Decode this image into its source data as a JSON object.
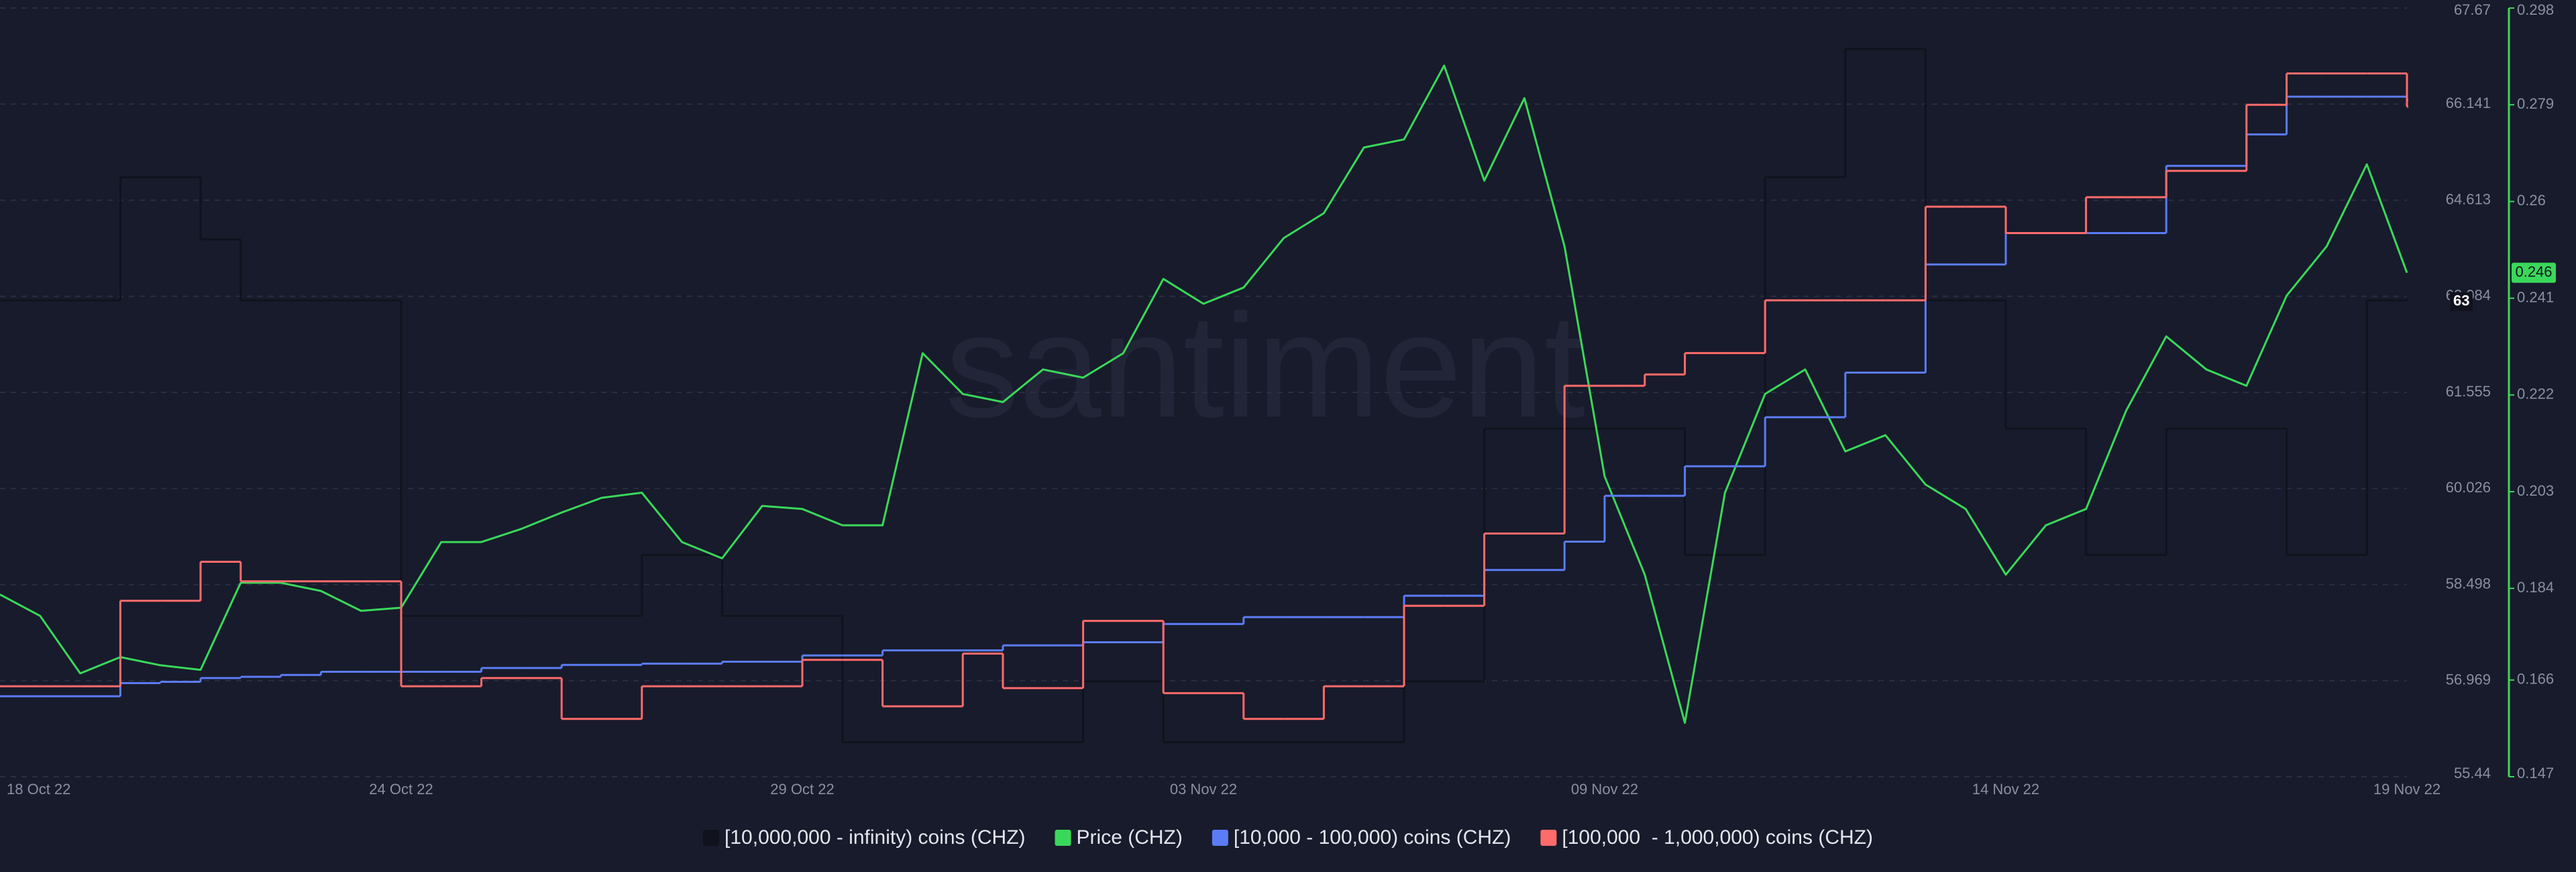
{
  "chart_data": {
    "type": "line",
    "watermark": "santiment",
    "categories": [
      "18 Oct 22",
      null,
      null,
      null,
      null,
      null,
      null,
      null,
      null,
      null,
      "24 Oct 22",
      null,
      null,
      null,
      null,
      null,
      null,
      null,
      null,
      null,
      "29 Oct 22",
      null,
      null,
      null,
      null,
      null,
      null,
      null,
      null,
      null,
      "03 Nov 22",
      null,
      null,
      null,
      null,
      null,
      null,
      null,
      null,
      null,
      "09 Nov 22",
      null,
      null,
      null,
      null,
      null,
      null,
      null,
      null,
      null,
      "14 Nov 22",
      null,
      null,
      null,
      null,
      null,
      null,
      null,
      null,
      null,
      "19 Nov 22"
    ],
    "ylim": [
      55.44,
      67.67
    ],
    "yticks": [
      55.44,
      56.969,
      58.498,
      60.026,
      61.555,
      63.084,
      64.613,
      66.141,
      67.67
    ],
    "y2lim": [
      0.147,
      0.298
    ],
    "y2ticks": [
      0.147,
      0.166,
      0.184,
      0.203,
      0.222,
      0.241,
      0.26,
      0.279,
      0.298
    ],
    "grid": true,
    "y_marker": 63,
    "y2_marker": 0.246,
    "series": [
      {
        "name": "[10,000,000 - infinity) coins (CHZ)",
        "color": "#10121d",
        "line_style": "step",
        "values": [
          63.02,
          63.02,
          63.02,
          64.98,
          64.98,
          63.99,
          63.02,
          63.02,
          63.02,
          63.02,
          58.0,
          58.0,
          58.0,
          58.0,
          58.0,
          58.0,
          58.97,
          58.97,
          58.0,
          58.0,
          58.0,
          55.99,
          55.99,
          55.99,
          55.99,
          55.99,
          55.99,
          56.96,
          56.96,
          55.99,
          55.99,
          55.99,
          55.99,
          55.99,
          55.99,
          56.96,
          56.96,
          60.98,
          60.98,
          60.98,
          60.98,
          60.98,
          58.97,
          58.97,
          64.98,
          64.98,
          67.02,
          67.02,
          63.02,
          63.02,
          60.98,
          60.98,
          58.97,
          58.97,
          60.98,
          60.98,
          60.98,
          58.97,
          58.97,
          63.02,
          63.02
        ]
      },
      {
        "name": "Price (CHZ)",
        "color": "#3ad85a",
        "axis": "y2",
        "line_style": "line",
        "values": [
          0.1828,
          0.1786,
          0.1673,
          0.1705,
          0.1689,
          0.168,
          0.1851,
          0.1851,
          0.1835,
          0.1796,
          0.1802,
          0.1931,
          0.1931,
          0.1957,
          0.1989,
          0.2018,
          0.2028,
          0.1931,
          0.1899,
          0.2002,
          0.1996,
          0.1964,
          0.1964,
          0.2302,
          0.2222,
          0.2206,
          0.227,
          0.2254,
          0.2302,
          0.2448,
          0.2399,
          0.2431,
          0.2528,
          0.2577,
          0.2706,
          0.2722,
          0.2867,
          0.2641,
          0.2803,
          0.2512,
          0.206,
          0.1867,
          0.1576,
          0.2028,
          0.2222,
          0.227,
          0.2109,
          0.2141,
          0.2044,
          0.1996,
          0.1867,
          0.1964,
          0.1996,
          0.2189,
          0.2335,
          0.227,
          0.2238,
          0.2415,
          0.2512,
          0.2673,
          0.246
        ]
      },
      {
        "name": "[10,000 - 100,000) coins (CHZ)",
        "color": "#5b7cf6",
        "line_style": "step",
        "values": [
          56.72,
          56.72,
          56.72,
          56.93,
          56.95,
          57.01,
          57.03,
          57.06,
          57.11,
          57.11,
          57.11,
          57.11,
          57.17,
          57.17,
          57.22,
          57.22,
          57.24,
          57.24,
          57.27,
          57.27,
          57.37,
          57.37,
          57.45,
          57.45,
          57.45,
          57.53,
          57.53,
          57.58,
          57.58,
          57.87,
          57.87,
          57.98,
          57.98,
          57.98,
          57.98,
          58.32,
          58.32,
          58.73,
          58.73,
          59.18,
          59.91,
          59.91,
          60.38,
          60.38,
          61.16,
          61.16,
          61.87,
          61.87,
          63.59,
          63.59,
          64.09,
          64.09,
          64.09,
          64.09,
          65.16,
          65.16,
          65.66,
          66.26,
          66.26,
          66.26,
          66.21
        ]
      },
      {
        "name": "[100,000  - 1,000,000) coins (CHZ)",
        "color": "#ff6b6b",
        "line_style": "step",
        "values": [
          56.88,
          56.88,
          56.88,
          58.24,
          58.24,
          58.86,
          58.55,
          58.55,
          58.55,
          58.55,
          56.88,
          56.88,
          57.01,
          57.01,
          56.36,
          56.36,
          56.88,
          56.88,
          56.88,
          56.88,
          57.3,
          57.3,
          56.56,
          56.56,
          57.4,
          56.85,
          56.85,
          57.92,
          57.92,
          56.77,
          56.77,
          56.36,
          56.36,
          56.88,
          56.88,
          58.16,
          58.16,
          59.31,
          59.31,
          61.66,
          61.66,
          61.84,
          62.18,
          62.18,
          63.02,
          63.02,
          63.02,
          63.02,
          64.51,
          64.51,
          64.09,
          64.09,
          64.66,
          64.66,
          65.08,
          65.08,
          66.13,
          66.63,
          66.63,
          66.63,
          66.1
        ]
      }
    ]
  }
}
